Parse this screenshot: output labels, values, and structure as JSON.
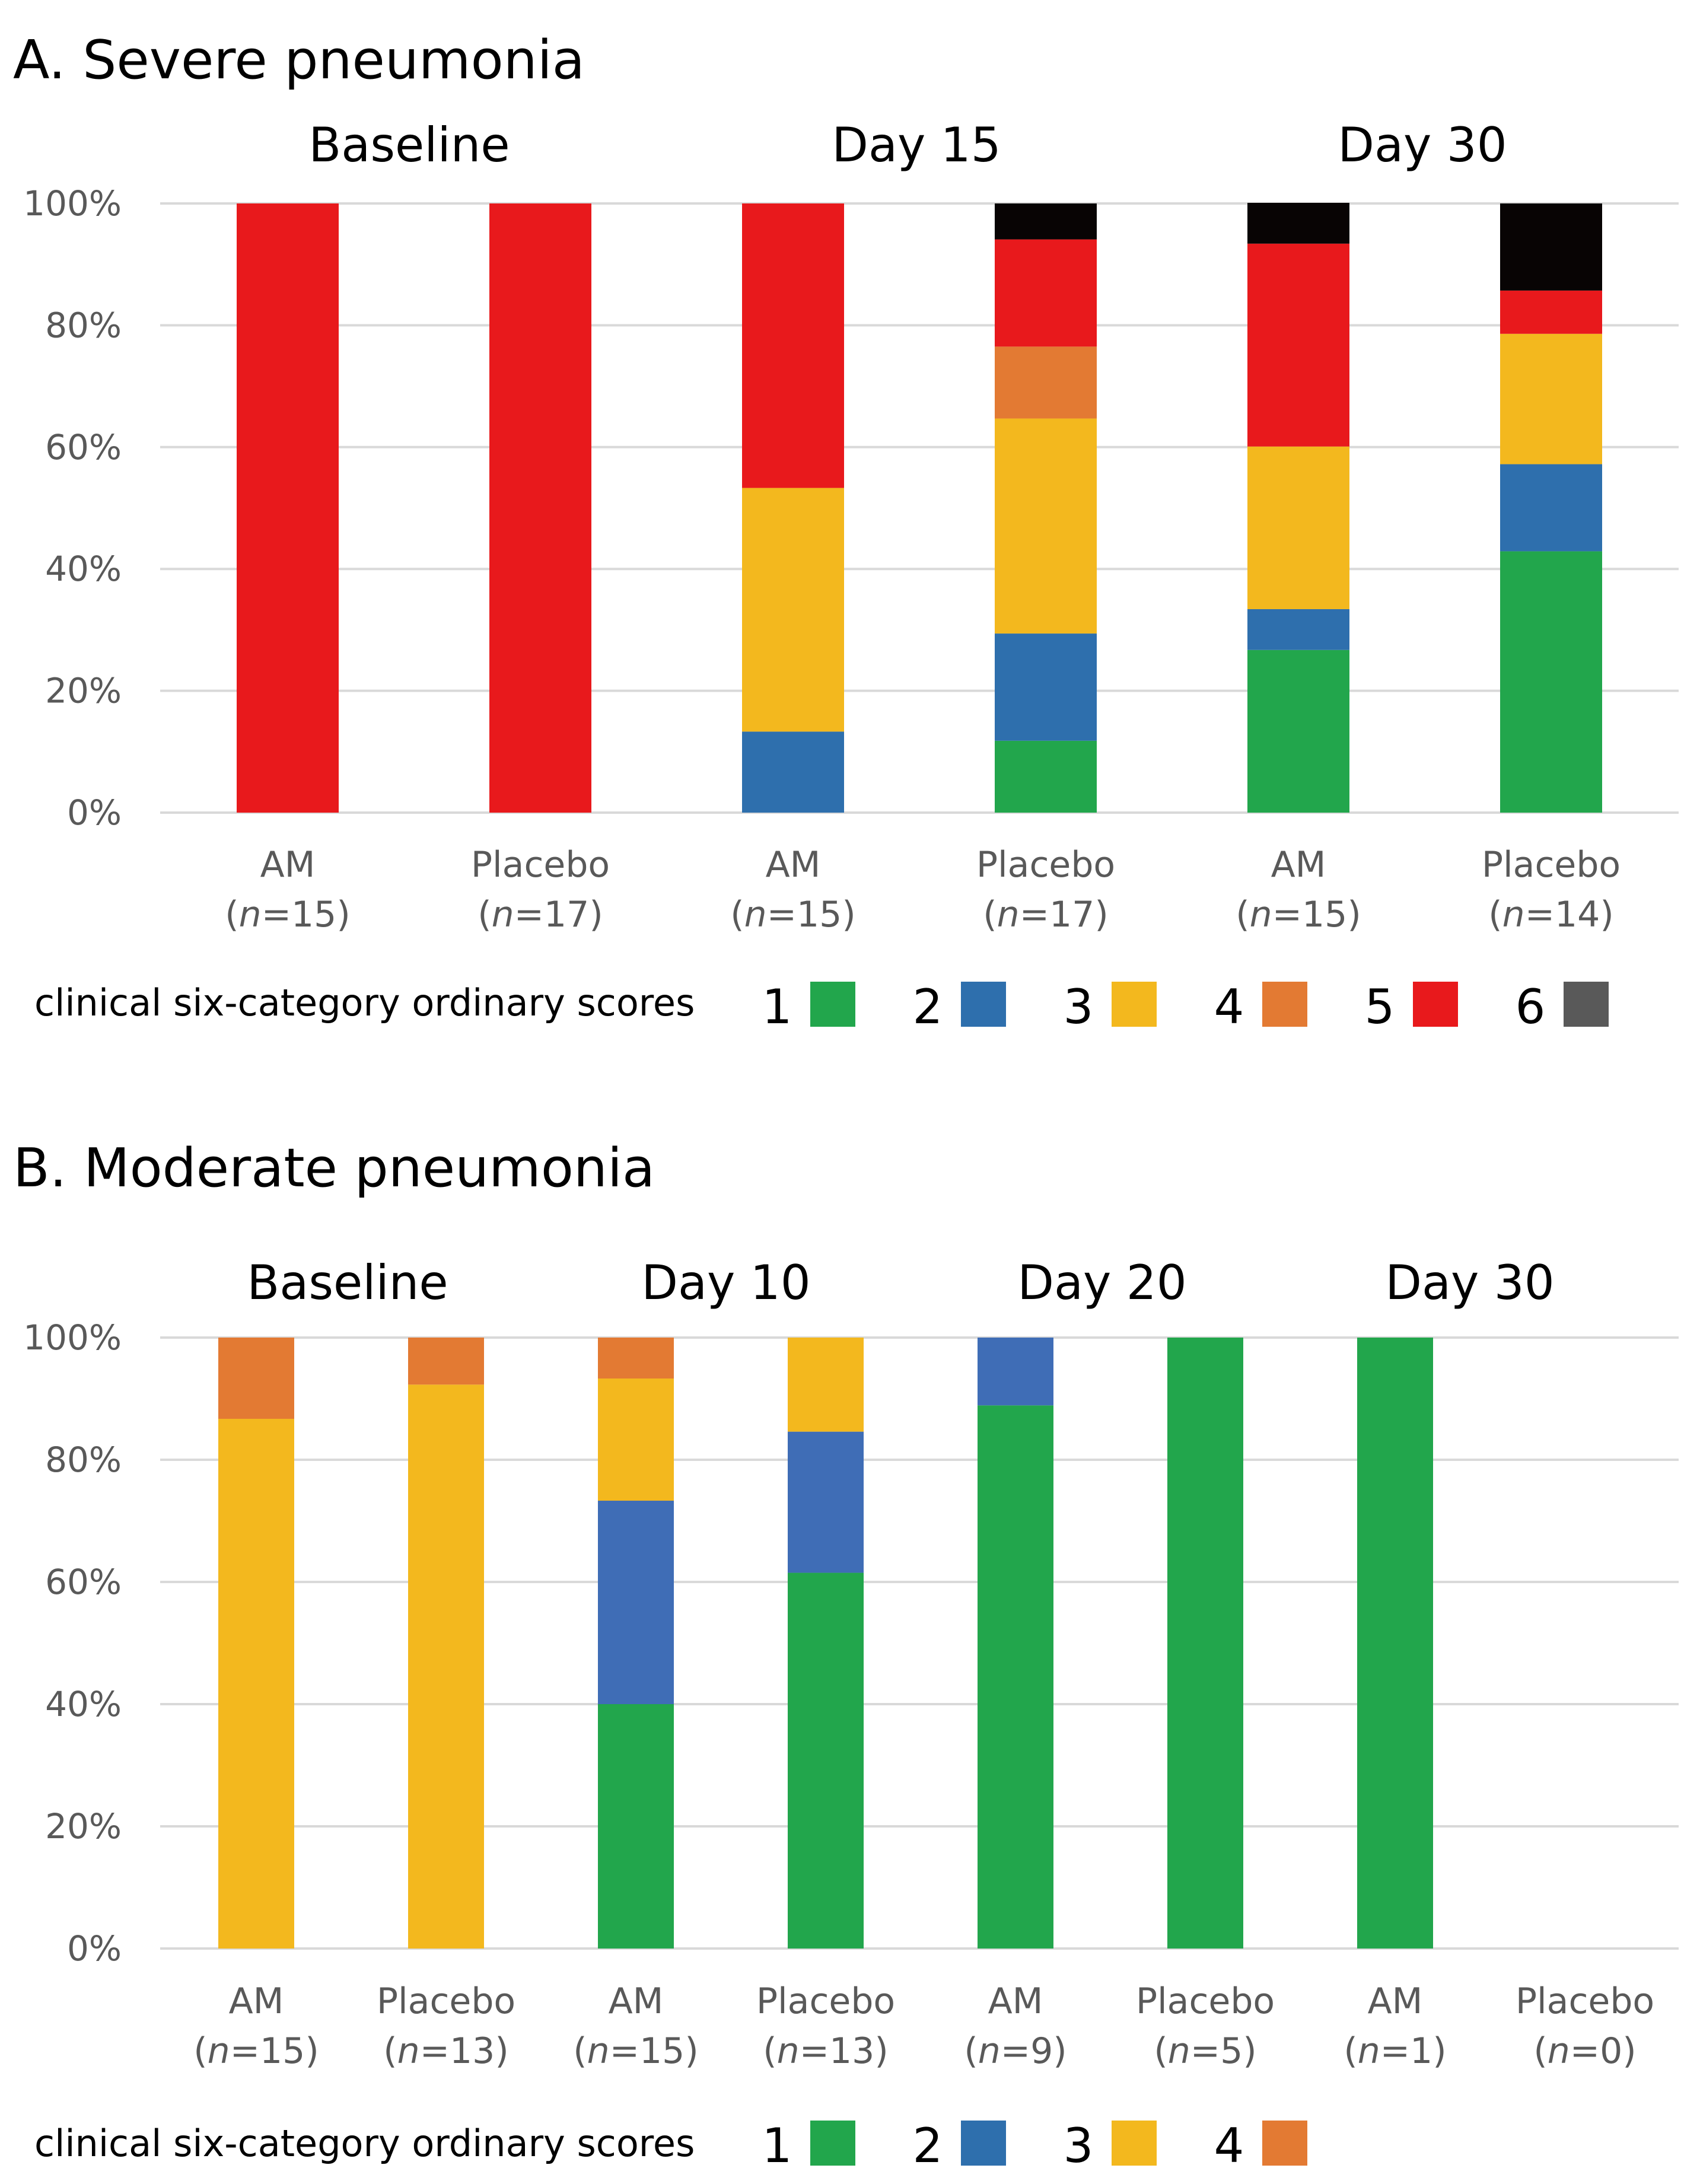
{
  "colors": {
    "1": "#22a64c",
    "2": "#2e6fad",
    "3": "#f3b81e",
    "4": "#e37a33",
    "5": "#e8191c",
    "6": "#080404"
  },
  "legend": {
    "title": "clinical six-category ordinary scores",
    "swatch_colors": {
      "1": "#22a64c",
      "2": "#2e6fad",
      "3": "#f3b81e",
      "4": "#e37a33",
      "5": "#e8191c",
      "6": "#595959"
    }
  },
  "chart_data": [
    {
      "type": "bar",
      "stacked": true,
      "title": "A. Severe pneumonia",
      "ylim": [
        0,
        100
      ],
      "yticks": [
        "0%",
        "20%",
        "40%",
        "60%",
        "80%",
        "100%"
      ],
      "groups": [
        "Baseline",
        "Day 15",
        "Day 30"
      ],
      "categories": [
        {
          "group": "Baseline",
          "label": "AM",
          "n": "15"
        },
        {
          "group": "Baseline",
          "label": "Placebo",
          "n": "17"
        },
        {
          "group": "Day 15",
          "label": "AM",
          "n": "15"
        },
        {
          "group": "Day 15",
          "label": "Placebo",
          "n": "17"
        },
        {
          "group": "Day 30",
          "label": "AM",
          "n": "15"
        },
        {
          "group": "Day 30",
          "label": "Placebo",
          "n": "14"
        }
      ],
      "series": [
        {
          "name": "1",
          "values": [
            0,
            0,
            0,
            11.8,
            26.7,
            42.9
          ]
        },
        {
          "name": "2",
          "values": [
            0,
            0,
            13.3,
            17.6,
            6.7,
            14.3
          ]
        },
        {
          "name": "3",
          "values": [
            0,
            0,
            40.0,
            35.3,
            26.7,
            21.4
          ]
        },
        {
          "name": "4",
          "values": [
            0,
            0,
            0,
            11.8,
            0,
            0
          ]
        },
        {
          "name": "5",
          "values": [
            100,
            100,
            46.7,
            17.6,
            33.3,
            7.1
          ]
        },
        {
          "name": "6",
          "values": [
            0,
            0,
            0,
            5.9,
            6.7,
            14.3
          ]
        }
      ],
      "legend_items": [
        "1",
        "2",
        "3",
        "4",
        "5",
        "6"
      ]
    },
    {
      "type": "bar",
      "stacked": true,
      "title": "B. Moderate pneumonia",
      "ylim": [
        0,
        100
      ],
      "yticks": [
        "0%",
        "20%",
        "40%",
        "60%",
        "80%",
        "100%"
      ],
      "groups": [
        "Baseline",
        "Day 10",
        "Day 20",
        "Day 30"
      ],
      "categories": [
        {
          "group": "Baseline",
          "label": "AM",
          "n": "15"
        },
        {
          "group": "Baseline",
          "label": "Placebo",
          "n": "13"
        },
        {
          "group": "Day 10",
          "label": "AM",
          "n": "15"
        },
        {
          "group": "Day 10",
          "label": "Placebo",
          "n": "13"
        },
        {
          "group": "Day 20",
          "label": "AM",
          "n": "9"
        },
        {
          "group": "Day 20",
          "label": "Placebo",
          "n": "5"
        },
        {
          "group": "Day 30",
          "label": "AM",
          "n": "1"
        },
        {
          "group": "Day 30",
          "label": "Placebo",
          "n": "0"
        }
      ],
      "series": [
        {
          "name": "1",
          "values": [
            0,
            0,
            40.0,
            61.5,
            88.9,
            100,
            100,
            0
          ]
        },
        {
          "name": "2",
          "values": [
            0,
            0,
            33.3,
            23.1,
            11.1,
            0,
            0,
            0
          ]
        },
        {
          "name": "3",
          "values": [
            86.7,
            92.3,
            20.0,
            15.4,
            0,
            0,
            0,
            0
          ]
        },
        {
          "name": "4",
          "values": [
            13.3,
            7.7,
            6.7,
            0,
            0,
            0,
            0,
            0
          ]
        }
      ],
      "series_colors": {
        "2": "#3f6db6"
      },
      "legend_items": [
        "1",
        "2",
        "3",
        "4"
      ]
    }
  ]
}
